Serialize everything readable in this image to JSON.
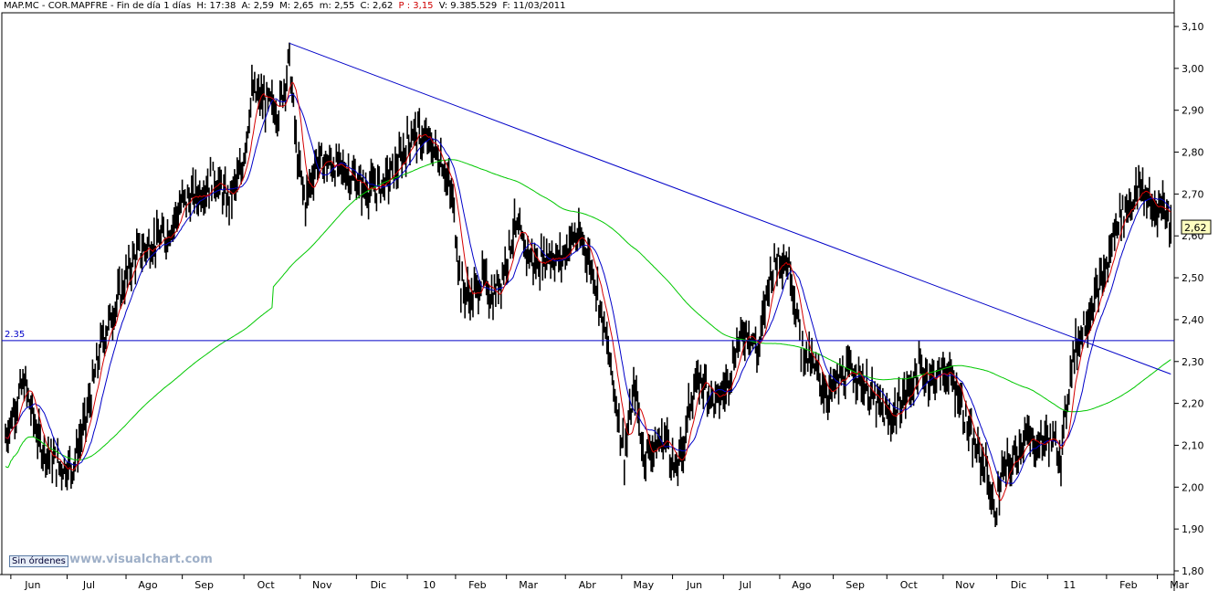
{
  "header": {
    "ticker": "MAP.MC - COR.MAPFRE - Fin de día 1 días",
    "time": "H: 17:38",
    "open": "A: 2,59",
    "high": "M: 2,65",
    "low": "m: 2,55",
    "close": "C: 2,62",
    "price": "P : 3,15",
    "volume": "V: 9.385.529",
    "date": "F: 11/03/2011"
  },
  "badge": "Sin órdenes",
  "watermark": "www.visualchart.com",
  "colors": {
    "price": "#000000",
    "ma_fast": "#d40000",
    "ma_mid": "#0000c8",
    "ma_slow": "#00c800",
    "trendline": "#0000c8",
    "hline": "#0000c8"
  },
  "chart_data": {
    "type": "line",
    "title": "MAP.MC - COR.MAPFRE",
    "y_axis": {
      "ticks": [
        "3,10",
        "3,00",
        "2,90",
        "2,80",
        "2,70",
        "2,60",
        "2,50",
        "2,40",
        "2,30",
        "2,20",
        "2,10",
        "2,00",
        "1,90",
        "1,80"
      ],
      "range": [
        1.8,
        3.1
      ],
      "side": "right"
    },
    "x_axis": {
      "labels": [
        "Jun",
        "Jul",
        "Ago",
        "Sep",
        "Oct",
        "Nov",
        "Dic",
        "10",
        "Feb",
        "Mar",
        "Abr",
        "May",
        "Jun",
        "Jul",
        "Ago",
        "Sep",
        "Oct",
        "Nov",
        "Dic",
        "11",
        "Feb",
        "Mar"
      ],
      "label_index": [
        4,
        46,
        90,
        132,
        178,
        220,
        262,
        300,
        336,
        374,
        418,
        460,
        498,
        536,
        578,
        618,
        658,
        700,
        740,
        778,
        822,
        860
      ]
    },
    "last_price": "2,62",
    "horizontal_line": {
      "value": 2.35,
      "label": "2.35"
    },
    "trendline": {
      "from": {
        "index": 212,
        "value": 3.06
      },
      "to": {
        "index": 870,
        "value": 2.27
      }
    },
    "series": [
      {
        "kind": "price",
        "anchors": [
          [
            0,
            2.12
          ],
          [
            8,
            2.2
          ],
          [
            14,
            2.25
          ],
          [
            26,
            2.1
          ],
          [
            40,
            2.05
          ],
          [
            50,
            2.05
          ],
          [
            60,
            2.16
          ],
          [
            72,
            2.35
          ],
          [
            84,
            2.45
          ],
          [
            96,
            2.55
          ],
          [
            108,
            2.58
          ],
          [
            120,
            2.6
          ],
          [
            132,
            2.68
          ],
          [
            144,
            2.7
          ],
          [
            156,
            2.74
          ],
          [
            166,
            2.68
          ],
          [
            176,
            2.75
          ],
          [
            184,
            2.94
          ],
          [
            194,
            2.92
          ],
          [
            204,
            2.9
          ],
          [
            212,
            3.02
          ],
          [
            218,
            2.78
          ],
          [
            224,
            2.68
          ],
          [
            232,
            2.78
          ],
          [
            244,
            2.77
          ],
          [
            256,
            2.75
          ],
          [
            268,
            2.71
          ],
          [
            280,
            2.72
          ],
          [
            292,
            2.76
          ],
          [
            304,
            2.85
          ],
          [
            316,
            2.82
          ],
          [
            326,
            2.78
          ],
          [
            334,
            2.68
          ],
          [
            340,
            2.48
          ],
          [
            348,
            2.45
          ],
          [
            356,
            2.5
          ],
          [
            364,
            2.45
          ],
          [
            372,
            2.52
          ],
          [
            380,
            2.62
          ],
          [
            388,
            2.57
          ],
          [
            396,
            2.53
          ],
          [
            406,
            2.56
          ],
          [
            414,
            2.54
          ],
          [
            424,
            2.6
          ],
          [
            432,
            2.58
          ],
          [
            440,
            2.5
          ],
          [
            448,
            2.36
          ],
          [
            454,
            2.24
          ],
          [
            462,
            2.08
          ],
          [
            470,
            2.24
          ],
          [
            476,
            2.08
          ],
          [
            486,
            2.1
          ],
          [
            494,
            2.12
          ],
          [
            500,
            2.03
          ],
          [
            506,
            2.1
          ],
          [
            512,
            2.22
          ],
          [
            520,
            2.26
          ],
          [
            530,
            2.2
          ],
          [
            538,
            2.24
          ],
          [
            546,
            2.34
          ],
          [
            554,
            2.38
          ],
          [
            562,
            2.32
          ],
          [
            570,
            2.5
          ],
          [
            578,
            2.56
          ],
          [
            586,
            2.52
          ],
          [
            594,
            2.34
          ],
          [
            604,
            2.28
          ],
          [
            614,
            2.22
          ],
          [
            624,
            2.26
          ],
          [
            634,
            2.28
          ],
          [
            642,
            2.24
          ],
          [
            650,
            2.2
          ],
          [
            660,
            2.16
          ],
          [
            672,
            2.22
          ],
          [
            682,
            2.28
          ],
          [
            692,
            2.26
          ],
          [
            702,
            2.28
          ],
          [
            712,
            2.22
          ],
          [
            722,
            2.1
          ],
          [
            732,
            2.05
          ],
          [
            738,
            1.93
          ],
          [
            744,
            2.03
          ],
          [
            752,
            2.06
          ],
          [
            760,
            2.12
          ],
          [
            770,
            2.1
          ],
          [
            778,
            2.12
          ],
          [
            788,
            2.08
          ],
          [
            796,
            2.3
          ],
          [
            804,
            2.38
          ],
          [
            812,
            2.44
          ],
          [
            822,
            2.52
          ],
          [
            830,
            2.64
          ],
          [
            840,
            2.68
          ],
          [
            848,
            2.72
          ],
          [
            856,
            2.66
          ],
          [
            864,
            2.68
          ],
          [
            870,
            2.62
          ]
        ]
      },
      {
        "kind": "ma_fast",
        "period": 10
      },
      {
        "kind": "ma_mid",
        "period": 20
      },
      {
        "kind": "ma_slow",
        "period": 200
      }
    ]
  }
}
